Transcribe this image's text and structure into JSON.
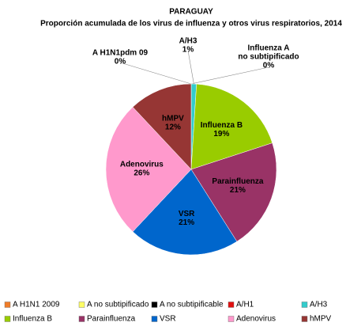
{
  "chart_data": {
    "type": "pie",
    "title": "PARAGUAY",
    "subtitle": "Proporción acumulada de los virus de influenza y otros virus respiratorios, 2014",
    "series": [
      {
        "name": "A H1N1 2009",
        "color": "#f07d28",
        "values": [
          0,
          0,
          0,
          0,
          1,
          19,
          21,
          21,
          26,
          12
        ]
      },
      {
        "name": "A no subtipificado",
        "color": "#ffff66"
      },
      {
        "name": "A no subtipificable",
        "color": "#000000"
      },
      {
        "name": "A/H1",
        "color": "#e01010"
      },
      {
        "name": "A/H3",
        "color": "#33cccc"
      },
      {
        "name": "Influenza  B",
        "color": "#99cc00"
      },
      {
        "name": "Parainfluenza",
        "color": "#993366"
      },
      {
        "name": "VSR",
        "color": "#0066cc"
      },
      {
        "name": "Adenovirus",
        "color": "#ff99cc"
      },
      {
        "name": "hMPV",
        "color": "#963634"
      }
    ],
    "slice_labels": [
      [
        "A H1N1pdm 09"
      ],
      [
        "Influenza A",
        "no subtipificado"
      ],
      null,
      null,
      [
        "A/H3"
      ],
      [
        "Influenza  B"
      ],
      [
        "Parainfluenza"
      ],
      [
        "VSR"
      ],
      [
        "Adenovirus"
      ],
      [
        "hMPV"
      ]
    ],
    "value_labels": [
      "0%",
      "0%",
      null,
      null,
      "1%",
      "19%",
      "21%",
      "21%",
      "26%",
      "12%"
    ]
  }
}
